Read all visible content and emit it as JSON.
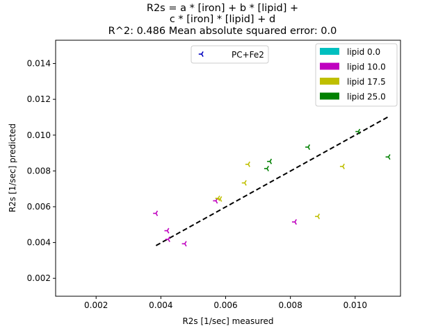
{
  "chart_data": {
    "type": "scatter",
    "title_lines": [
      "R2s = a * [iron] + b * [lipid] +",
      "c * [iron] * [lipid]  + d",
      "R^2: 0.486 Mean absolute squared error: 0.0"
    ],
    "xlabel": "R2s [1/sec] measured",
    "ylabel": "R2s [1/sec] predicted",
    "xlim": [
      0.00075,
      0.0114
    ],
    "ylim": [
      0.001,
      0.0153
    ],
    "xticks": [
      0.002,
      0.004,
      0.006,
      0.008,
      0.01
    ],
    "xtick_labels": [
      "0.002",
      "0.004",
      "0.006",
      "0.008",
      "0.010"
    ],
    "yticks": [
      0.002,
      0.004,
      0.006,
      0.008,
      0.01,
      0.012,
      0.014
    ],
    "ytick_labels": [
      "0.002",
      "0.004",
      "0.006",
      "0.008",
      "0.010",
      "0.012",
      "0.014"
    ],
    "grid": false,
    "fit_line": {
      "x": [
        0.00385,
        0.01105
      ],
      "y": [
        0.00383,
        0.01105
      ],
      "color": "#000000",
      "style": "dashed"
    },
    "marker_legend": {
      "label": "PC+Fe2",
      "color": "#0000bf",
      "placement": "upper-center"
    },
    "color_legend": {
      "placement": "top-right",
      "entries": [
        {
          "label": "lipid 0.0",
          "color": "#00bfbf"
        },
        {
          "label": "lipid 10.0",
          "color": "#bf00bf"
        },
        {
          "label": "lipid 17.5",
          "color": "#bfbf00"
        },
        {
          "label": "lipid 25.0",
          "color": "#008000"
        }
      ]
    },
    "series": [
      {
        "name": "lipid 0.0",
        "color": "#00bfbf",
        "points": []
      },
      {
        "name": "lipid 10.0",
        "color": "#bf00bf",
        "points": [
          [
            0.00385,
            0.00563
          ],
          [
            0.0042,
            0.00466
          ],
          [
            0.00423,
            0.00418
          ],
          [
            0.00474,
            0.00393
          ],
          [
            0.0057,
            0.00633
          ],
          [
            0.00814,
            0.00515
          ]
        ]
      },
      {
        "name": "lipid 17.5",
        "color": "#bfbf00",
        "points": [
          [
            0.00577,
            0.00647
          ],
          [
            0.00583,
            0.00643
          ],
          [
            0.00659,
            0.00733
          ],
          [
            0.0067,
            0.00837
          ],
          [
            0.00885,
            0.00546
          ],
          [
            0.00962,
            0.00825
          ]
        ]
      },
      {
        "name": "lipid 25.0",
        "color": "#008000",
        "points": [
          [
            0.00728,
            0.00813
          ],
          [
            0.00737,
            0.00853
          ],
          [
            0.00855,
            0.00933
          ],
          [
            0.0101,
            0.0102
          ],
          [
            0.01103,
            0.00878
          ]
        ]
      }
    ]
  }
}
